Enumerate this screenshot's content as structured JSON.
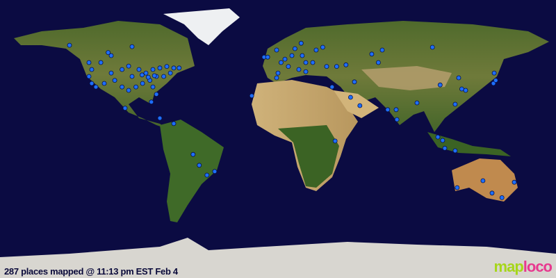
{
  "caption": "287 places mapped @ 11:13 pm EST Feb 4",
  "logo": {
    "part1": "map",
    "part2": "loco",
    "text": "maploco"
  },
  "projection": "equirectangular",
  "colors": {
    "ocean": "#0b0b42",
    "marker": "#1e6fff",
    "marker_outline": "#06124a",
    "logo_green": "#a6d61a",
    "logo_pink": "#e8388f"
  },
  "places": [
    [
      -135,
      60.7
    ],
    [
      -94.5,
      59.8
    ],
    [
      -110,
      56
    ],
    [
      -122.4,
      49.5
    ],
    [
      -120.6,
      45
    ],
    [
      -122.4,
      40.5
    ],
    [
      -120.6,
      36
    ],
    [
      -117.9,
      33.7
    ],
    [
      -112.5,
      36
    ],
    [
      -108,
      42.7
    ],
    [
      -101,
      45
    ],
    [
      -96.7,
      47.2
    ],
    [
      -90,
      45
    ],
    [
      -85.5,
      42.7
    ],
    [
      -81,
      45
    ],
    [
      -76.5,
      46
    ],
    [
      -72,
      47
    ],
    [
      -67.5,
      46
    ],
    [
      -78.7,
      40.5
    ],
    [
      -83,
      38
    ],
    [
      -87.7,
      36
    ],
    [
      -92,
      33.7
    ],
    [
      -96.7,
      31.5
    ],
    [
      -101,
      33.7
    ],
    [
      -105.7,
      38
    ],
    [
      -94.5,
      40.5
    ],
    [
      -81,
      33.7
    ],
    [
      -78.7,
      29
    ],
    [
      -99,
      20
    ],
    [
      -76.5,
      13.5
    ],
    [
      -67.5,
      10
    ],
    [
      -82,
      24
    ],
    [
      -114.7,
      49.5
    ],
    [
      -108,
      54
    ],
    [
      -74,
      40.5
    ],
    [
      -69.7,
      42.7
    ],
    [
      -64,
      46
    ],
    [
      -88,
      41.5
    ],
    [
      -84,
      40
    ],
    [
      -80,
      41
    ],
    [
      -55,
      -10
    ],
    [
      -51,
      -17
    ],
    [
      -46,
      -23.4
    ],
    [
      -41,
      -21
    ],
    [
      -17,
      28
    ],
    [
      -9,
      53
    ],
    [
      -6.7,
      53
    ],
    [
      -0.9,
      57.6
    ],
    [
      2,
      49.5
    ],
    [
      4.5,
      51.7
    ],
    [
      6.7,
      47
    ],
    [
      9,
      54
    ],
    [
      11,
      58.5
    ],
    [
      15,
      62
    ],
    [
      15.7,
      54
    ],
    [
      18,
      49.5
    ],
    [
      13.5,
      45
    ],
    [
      18,
      43.6
    ],
    [
      22.5,
      49.5
    ],
    [
      24.7,
      57.6
    ],
    [
      29,
      59.4
    ],
    [
      31.5,
      47
    ],
    [
      38,
      47
    ],
    [
      44,
      48
    ],
    [
      0,
      42.7
    ],
    [
      -0.9,
      39.6
    ],
    [
      35,
      33.7
    ],
    [
      49.5,
      37
    ],
    [
      60.7,
      55
    ],
    [
      65,
      49.5
    ],
    [
      100,
      59.4
    ],
    [
      67.5,
      57.6
    ],
    [
      47,
      27
    ],
    [
      53,
      21.6
    ],
    [
      71,
      19
    ],
    [
      76.5,
      19
    ],
    [
      77,
      12.6
    ],
    [
      90,
      23.4
    ],
    [
      105,
      35
    ],
    [
      117,
      39.6
    ],
    [
      119,
      32.4
    ],
    [
      114.7,
      22.5
    ],
    [
      121.5,
      31.5
    ],
    [
      140,
      42.7
    ],
    [
      139.5,
      36
    ],
    [
      141,
      38
    ],
    [
      103.5,
      1.3
    ],
    [
      108,
      -6
    ],
    [
      114.7,
      -7.6
    ],
    [
      106.6,
      -0.9
    ],
    [
      37,
      -1.3
    ],
    [
      132.7,
      -27
    ],
    [
      138.6,
      -35
    ],
    [
      145,
      -38
    ],
    [
      153,
      -28
    ],
    [
      116,
      -31.5
    ]
  ]
}
